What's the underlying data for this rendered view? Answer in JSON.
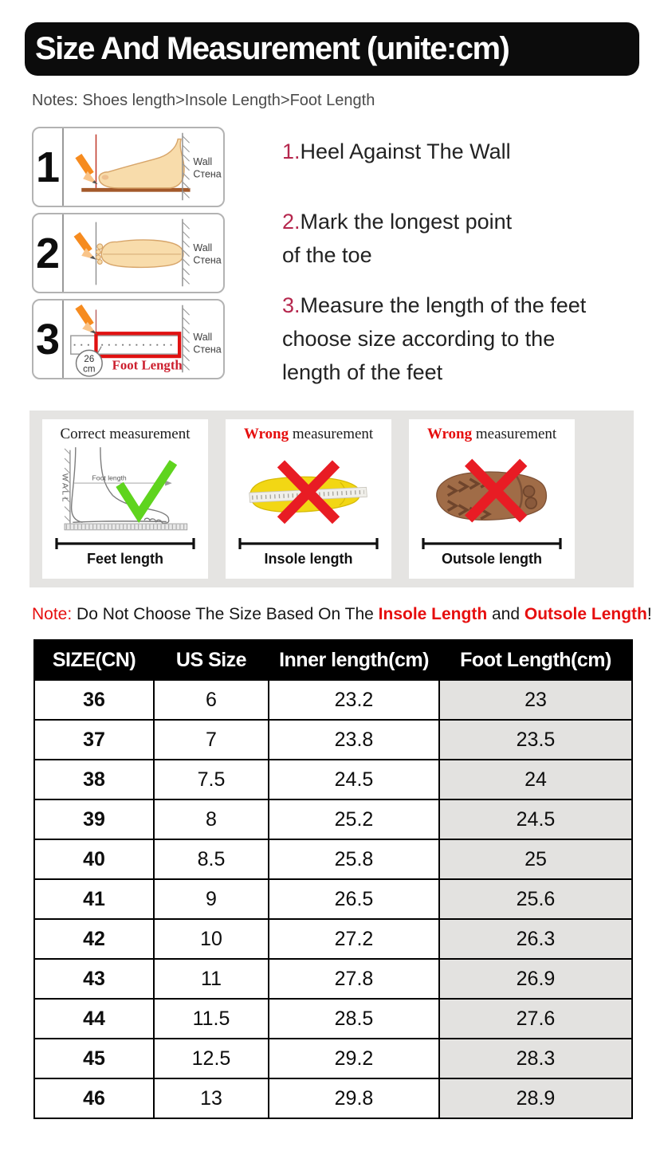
{
  "header": {
    "title": "Size And Measurement (unite:cm)"
  },
  "notes": "Notes: Shoes length>Insole Length>Foot Length",
  "panels": [
    {
      "num": "1",
      "wall_en": "Wall",
      "wall_ru": "Стена"
    },
    {
      "num": "2",
      "wall_en": "Wall",
      "wall_ru": "Стена"
    },
    {
      "num": "3",
      "wall_en": "Wall",
      "wall_ru": "Стена",
      "circle_value": "26",
      "circle_unit": "cm",
      "ruler_label": "Foot Length"
    }
  ],
  "instructions": [
    {
      "num": "1.",
      "lines": [
        "Heel Against The Wall"
      ]
    },
    {
      "num": "2.",
      "lines": [
        "Mark the longest point",
        "of the toe"
      ]
    },
    {
      "num": "3.",
      "lines": [
        "Measure the length of the feet",
        "choose size according to the",
        "length of the feet"
      ]
    }
  ],
  "boxes": [
    {
      "title_prefix": "Correct",
      "title_rest": " measurement",
      "wall_text": "WALL",
      "inner_label": "Foot length",
      "bracket_label": "Feet length"
    },
    {
      "title_prefix": "Wrong",
      "title_rest": " measurement",
      "bracket_label": "Insole length"
    },
    {
      "title_prefix": "Wrong",
      "title_rest": " measurement",
      "bracket_label": "Outsole length"
    }
  ],
  "note": {
    "prefix": "Note:",
    "body1": " Do Not Choose The Size Based On The ",
    "red1": "Insole Length",
    "body2": " and ",
    "red2": "Outsole Length",
    "suffix": "!"
  },
  "table": {
    "headers": [
      "SIZE(CN)",
      "US Size",
      "Inner length(cm)",
      "Foot Length(cm)"
    ],
    "rows": [
      [
        "36",
        "6",
        "23.2",
        "23"
      ],
      [
        "37",
        "7",
        "23.8",
        "23.5"
      ],
      [
        "38",
        "7.5",
        "24.5",
        "24"
      ],
      [
        "39",
        "8",
        "25.2",
        "24.5"
      ],
      [
        "40",
        "8.5",
        "25.8",
        "25"
      ],
      [
        "41",
        "9",
        "26.5",
        "25.6"
      ],
      [
        "42",
        "10",
        "27.2",
        "26.3"
      ],
      [
        "43",
        "11",
        "27.8",
        "26.9"
      ],
      [
        "44",
        "11.5",
        "28.5",
        "27.6"
      ],
      [
        "45",
        "12.5",
        "29.2",
        "28.3"
      ],
      [
        "46",
        "13",
        "29.8",
        "28.9"
      ]
    ]
  },
  "colors": {
    "header_bg": "#0c0c0c",
    "accent_red": "#e60e0e",
    "step_number_crimson": "#b5274d",
    "foot_length_red": "#cc1f2e",
    "check_green": "#5fd41e",
    "cross_red": "#e81c24",
    "table_shaded_col": "#e3e2e0",
    "strip_bg": "#e5e4e2"
  }
}
